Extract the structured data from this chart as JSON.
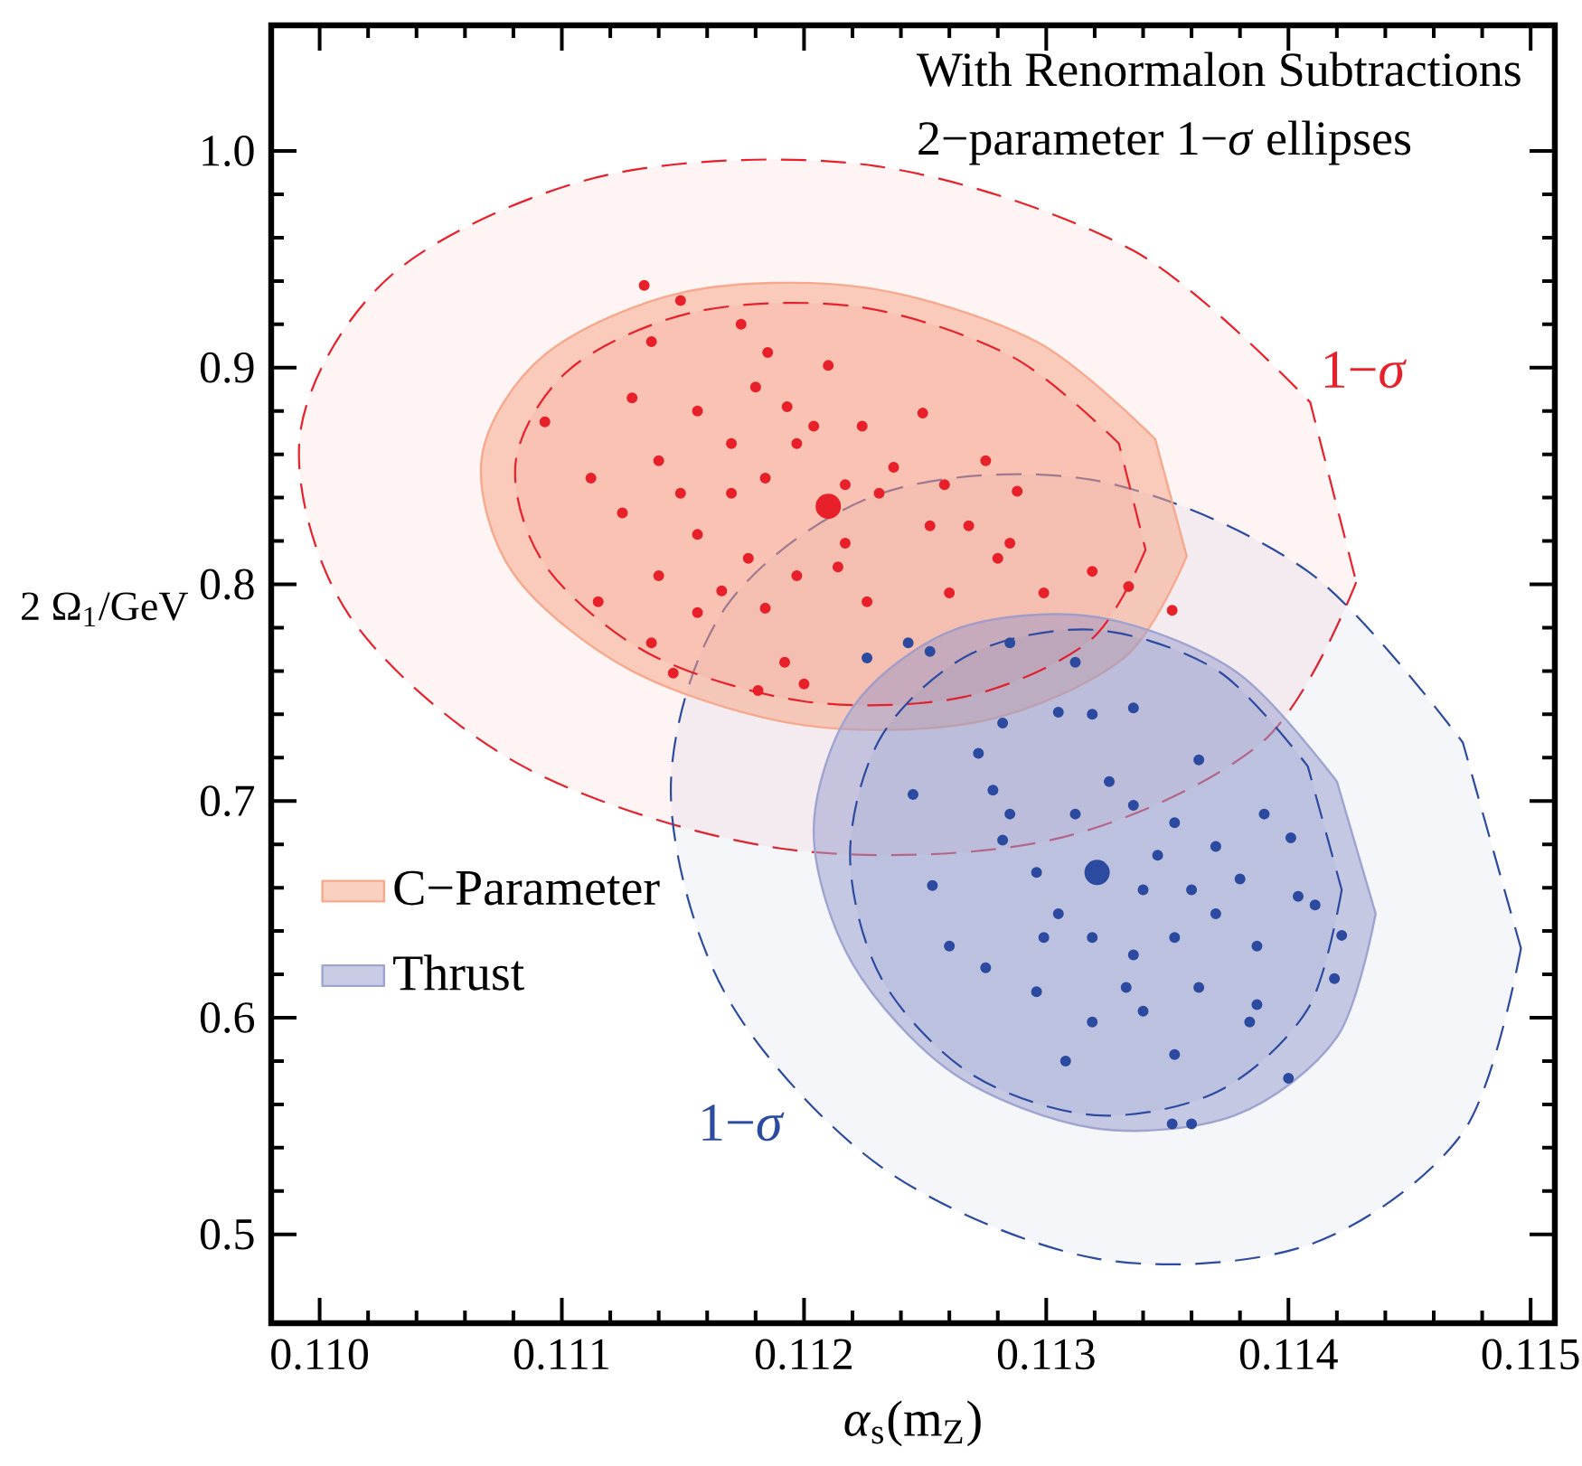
{
  "chart_data": {
    "type": "scatter",
    "title": "With Renormalon Subtractions",
    "subtitle": "2−parameter 1−*σ* ellipses",
    "xlabel": "*α*$_{s}$(m$_{Z}$)",
    "ylabel": "2 Ω$_{1}$/GeV",
    "xlim": [
      0.1098,
      0.1151
    ],
    "ylim": [
      0.459,
      1.058
    ],
    "xticks": [
      {
        "value": 0.11,
        "label": "0.110"
      },
      {
        "value": 0.111,
        "label": "0.111"
      },
      {
        "value": 0.112,
        "label": "0.112"
      },
      {
        "value": 0.113,
        "label": "0.113"
      },
      {
        "value": 0.114,
        "label": "0.114"
      },
      {
        "value": 0.115,
        "label": "0.115"
      }
    ],
    "yticks": [
      0.5,
      0.6,
      0.7,
      0.8,
      0.9,
      {
        "value": 1.0,
        "label": "1.0"
      }
    ],
    "legend": "left",
    "annotations": [
      "1−*σ*",
      "1−*σ*"
    ],
    "series": [
      {
        "type": "area",
        "line_style": "dashed",
        "color": "#e8202a",
        "x": [
          0.11428,
          0.11389,
          0.11302,
          0.11191,
          0.11084,
          0.11012,
          0.10992,
          0.11031,
          0.11119,
          0.1123,
          0.11336,
          0.11409
        ],
        "values": [
          0.801,
          0.727,
          0.682,
          0.678,
          0.716,
          0.786,
          0.87,
          0.944,
          0.989,
          0.993,
          0.954,
          0.884
        ]
      },
      {
        "type": "area",
        "line_style": "dashed",
        "color": "#2b4aa0",
        "x": [
          0.11496,
          0.11472,
          0.11408,
          0.1132,
          0.11232,
          0.11168,
          0.11145,
          0.11168,
          0.11232,
          0.1132,
          0.11408,
          0.11472
        ],
        "values": [
          0.632,
          0.547,
          0.495,
          0.489,
          0.531,
          0.61,
          0.705,
          0.79,
          0.842,
          0.848,
          0.806,
          0.727
        ]
      },
      {
        "type": "area",
        "name": "C−Parameter",
        "color": "#f6a98c",
        "x": [
          0.11358,
          0.11332,
          0.11274,
          0.112,
          0.11129,
          0.1108,
          0.11067,
          0.11093,
          0.11151,
          0.11225,
          0.11296,
          0.11345
        ],
        "values": [
          0.813,
          0.766,
          0.737,
          0.735,
          0.76,
          0.805,
          0.859,
          0.906,
          0.935,
          0.937,
          0.912,
          0.867
        ]
      },
      {
        "type": "area",
        "name": "Thrust",
        "color": "#9fa3d0",
        "x": [
          0.11436,
          0.1142,
          0.11378,
          0.1132,
          0.11262,
          0.1122,
          0.11204,
          0.1122,
          0.11262,
          0.1132,
          0.11378,
          0.1142
        ],
        "values": [
          0.648,
          0.591,
          0.555,
          0.549,
          0.574,
          0.625,
          0.686,
          0.743,
          0.779,
          0.785,
          0.76,
          0.709
        ]
      },
      {
        "type": "area",
        "line_style": "dashed",
        "color": "#e8202a",
        "x": [
          0.11341,
          0.11318,
          0.11266,
          0.112,
          0.11136,
          0.11093,
          0.11081,
          0.11104,
          0.11156,
          0.11223,
          0.11286,
          0.1133
        ],
        "values": [
          0.816,
          0.774,
          0.748,
          0.746,
          0.768,
          0.809,
          0.857,
          0.9,
          0.926,
          0.928,
          0.905,
          0.865
        ]
      },
      {
        "type": "area",
        "line_style": "dashed",
        "color": "#2b4aa0",
        "x": [
          0.11422,
          0.11408,
          0.11371,
          0.1132,
          0.11269,
          0.11232,
          0.11219,
          0.11232,
          0.11269,
          0.1132,
          0.11371,
          0.11408
        ],
        "values": [
          0.659,
          0.604,
          0.566,
          0.555,
          0.574,
          0.618,
          0.675,
          0.73,
          0.768,
          0.779,
          0.76,
          0.716
        ]
      },
      {
        "type": "scatter",
        "color": "#e8202a",
        "x": [
          0.11134,
          0.11149,
          0.11093,
          0.11115,
          0.11352,
          0.11334,
          0.11146,
          0.11181,
          0.112,
          0.11137,
          0.11174,
          0.11185,
          0.1121,
          0.11249,
          0.11275,
          0.11288,
          0.11319,
          0.11299,
          0.1126,
          0.11226,
          0.11192,
          0.11156,
          0.11137,
          0.11112,
          0.11125,
          0.11129,
          0.11156,
          0.1117,
          0.11193,
          0.11224,
          0.11237,
          0.11258,
          0.11268,
          0.11285,
          0.1128,
          0.11252,
          0.11217,
          0.11197,
          0.11177,
          0.11156,
          0.1114,
          0.1117,
          0.11184,
          0.11197,
          0.11217,
          0.11231,
          0.1118,
          0.11204,
          0.11149,
          0.1114,
          0.11166,
          0.11184,
          0.11214
        ],
        "values": [
          0.938,
          0.931,
          0.875,
          0.792,
          0.788,
          0.799,
          0.759,
          0.751,
          0.754,
          0.912,
          0.92,
          0.907,
          0.901,
          0.879,
          0.857,
          0.843,
          0.806,
          0.796,
          0.796,
          0.792,
          0.764,
          0.787,
          0.773,
          0.849,
          0.833,
          0.886,
          0.88,
          0.865,
          0.882,
          0.873,
          0.854,
          0.846,
          0.827,
          0.819,
          0.812,
          0.827,
          0.819,
          0.804,
          0.812,
          0.823,
          0.804,
          0.842,
          0.849,
          0.865,
          0.846,
          0.842,
          0.891,
          0.873,
          0.842,
          0.857,
          0.797,
          0.789,
          0.808
        ]
      },
      {
        "type": "scatter",
        "color": "#2b4aa0",
        "x": [
          0.11226,
          0.11243,
          0.11252,
          0.11285,
          0.11312,
          0.11245,
          0.11253,
          0.1126,
          0.11275,
          0.11296,
          0.11308,
          0.11352,
          0.1136,
          0.11353,
          0.114,
          0.11419,
          0.11422,
          0.11411,
          0.11401,
          0.1139,
          0.11363,
          0.11336,
          0.11319,
          0.11305,
          0.11282,
          0.11272,
          0.11278,
          0.11282,
          0.11296,
          0.11305,
          0.11319,
          0.11336,
          0.11353,
          0.1137,
          0.1138,
          0.1137,
          0.11353,
          0.11336,
          0.11326,
          0.11312,
          0.1134,
          0.1136,
          0.11363,
          0.11384,
          0.1134,
          0.11319,
          0.11333,
          0.11387,
          0.11404,
          0.11299,
          0.11285,
          0.11346,
          0.11387
        ],
        "values": [
          0.766,
          0.773,
          0.769,
          0.773,
          0.764,
          0.703,
          0.661,
          0.633,
          0.623,
          0.612,
          0.58,
          0.551,
          0.551,
          0.583,
          0.572,
          0.618,
          0.638,
          0.652,
          0.683,
          0.694,
          0.719,
          0.743,
          0.74,
          0.741,
          0.736,
          0.722,
          0.705,
          0.682,
          0.667,
          0.648,
          0.637,
          0.629,
          0.637,
          0.648,
          0.664,
          0.679,
          0.69,
          0.698,
          0.709,
          0.694,
          0.659,
          0.659,
          0.614,
          0.598,
          0.603,
          0.598,
          0.614,
          0.633,
          0.656,
          0.637,
          0.694,
          0.675,
          0.606
        ]
      },
      {
        "type": "scatter",
        "color": "#e8202a",
        "x": [
          0.1121
        ],
        "values": [
          0.836
        ]
      },
      {
        "type": "scatter",
        "color": "#2b4aa0",
        "x": [
          0.11321
        ],
        "values": [
          0.667
        ]
      }
    ]
  }
}
